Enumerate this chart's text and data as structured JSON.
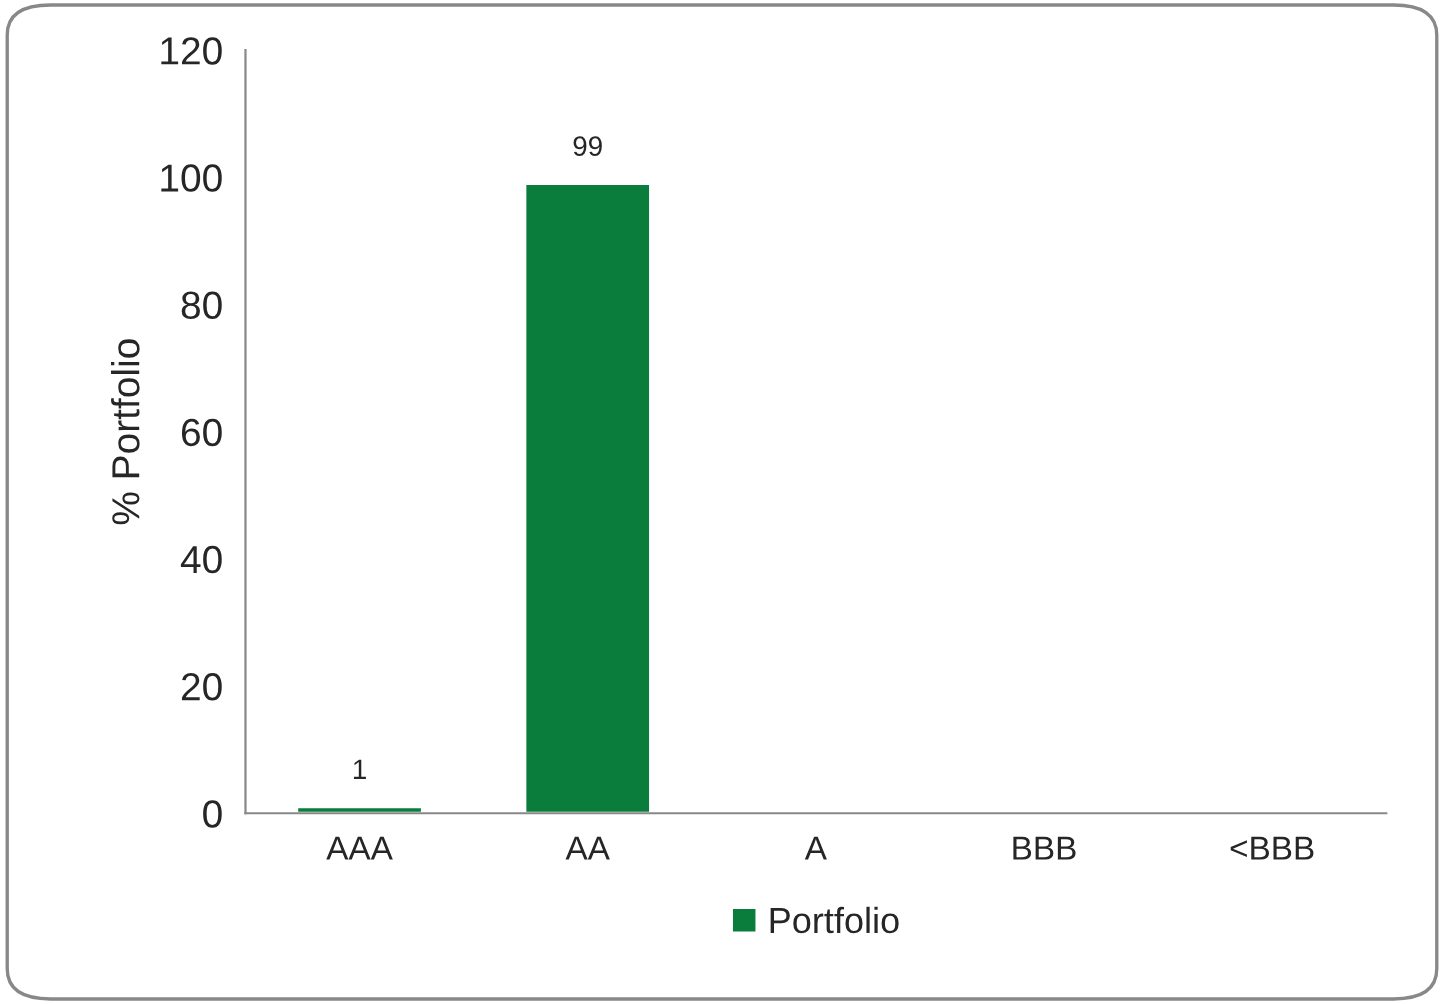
{
  "chart_data": {
    "type": "bar",
    "ylabel": "% Portfolio",
    "categories": [
      "AAA",
      "AA",
      "A",
      "BBB",
      "<BBB"
    ],
    "series": [
      {
        "name": "Portfolio",
        "color": "#0a7d3c",
        "values": [
          1,
          99,
          null,
          null,
          null
        ],
        "value_labels": [
          "1",
          "99",
          null,
          null,
          null
        ]
      }
    ],
    "ylim": [
      0,
      120
    ],
    "yticks": [
      0,
      20,
      40,
      60,
      80,
      100,
      120
    ],
    "grid": false,
    "legend": "bottom"
  }
}
